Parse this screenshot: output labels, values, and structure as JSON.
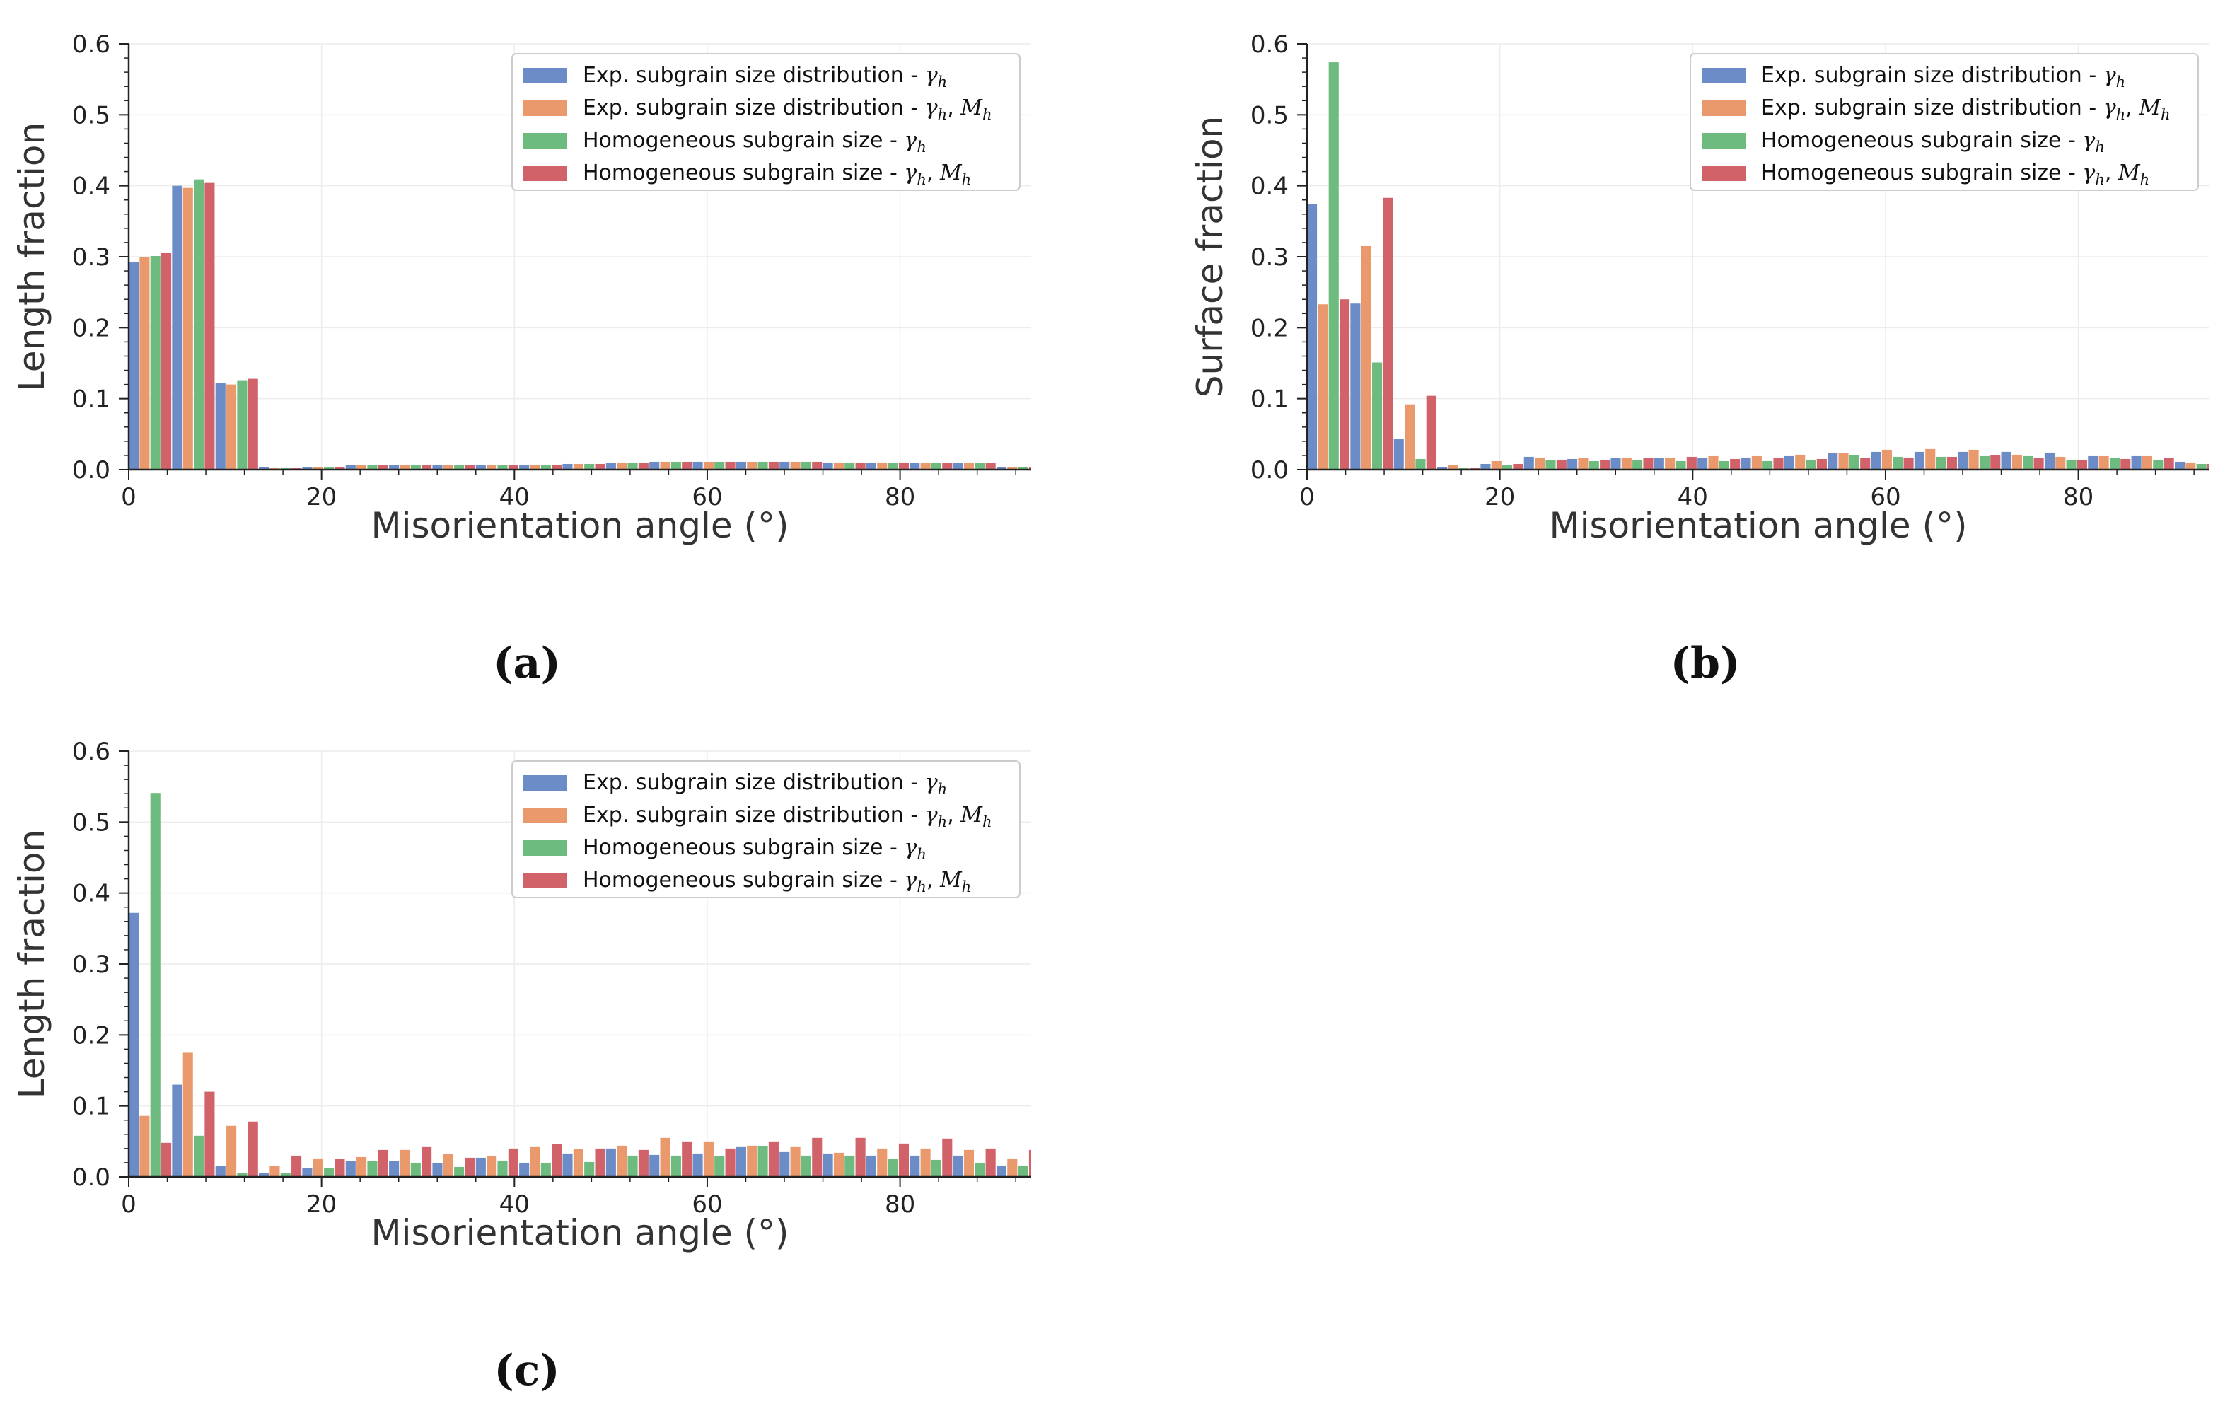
{
  "figure": {
    "captions": [
      "(a)",
      "(b)",
      "(c)"
    ]
  },
  "legend_entries": [
    {
      "text": "Exp. subgrain size distribution - ",
      "symbols": [
        {
          "base": "γ",
          "sub": "h"
        }
      ]
    },
    {
      "text": "Exp. subgrain size distribution - ",
      "symbols": [
        {
          "base": "γ",
          "sub": "h"
        },
        {
          "base": "M",
          "sub": "h"
        }
      ]
    },
    {
      "text": "Homogeneous subgrain size - ",
      "symbols": [
        {
          "base": "γ",
          "sub": "h"
        }
      ]
    },
    {
      "text": "Homogeneous subgrain size - ",
      "symbols": [
        {
          "base": "γ",
          "sub": "h"
        },
        {
          "base": "M",
          "sub": "h"
        }
      ]
    }
  ],
  "colors": {
    "series": [
      "#6b8cc7",
      "#e9996b",
      "#6dbb7e",
      "#d1626a"
    ],
    "grid": "#ececec",
    "axis": "#222222"
  },
  "chart_data": [
    {
      "id": "a",
      "type": "bar",
      "caption": "(a)",
      "xlabel": "Misorientation angle (°)",
      "ylabel": "Length fraction",
      "xlim": [
        0,
        93.6
      ],
      "ylim": [
        0,
        0.6
      ],
      "xticks": [
        0,
        20,
        40,
        60,
        80
      ],
      "yticks": [
        0.0,
        0.1,
        0.2,
        0.3,
        0.4,
        0.5,
        0.6
      ],
      "grid": true,
      "legend": "top-right",
      "bin_width": 4.5,
      "bin_starts": [
        0,
        4.5,
        9,
        13.5,
        18,
        22.5,
        27,
        31.5,
        36,
        40.5,
        45,
        49.5,
        54,
        58.5,
        63,
        67.5,
        72,
        76.5,
        81,
        85.5,
        90
      ],
      "series": [
        {
          "values": [
            0.292,
            0.4,
            0.122,
            0.004,
            0.004,
            0.006,
            0.007,
            0.007,
            0.007,
            0.007,
            0.008,
            0.01,
            0.011,
            0.011,
            0.011,
            0.011,
            0.01,
            0.01,
            0.009,
            0.009,
            0.004
          ]
        },
        {
          "values": [
            0.299,
            0.397,
            0.12,
            0.003,
            0.004,
            0.006,
            0.007,
            0.007,
            0.007,
            0.007,
            0.008,
            0.01,
            0.011,
            0.011,
            0.011,
            0.011,
            0.01,
            0.01,
            0.009,
            0.009,
            0.004
          ]
        },
        {
          "values": [
            0.301,
            0.409,
            0.126,
            0.003,
            0.004,
            0.006,
            0.007,
            0.007,
            0.007,
            0.007,
            0.008,
            0.01,
            0.011,
            0.011,
            0.011,
            0.011,
            0.01,
            0.01,
            0.009,
            0.009,
            0.004
          ]
        },
        {
          "values": [
            0.305,
            0.404,
            0.128,
            0.003,
            0.004,
            0.006,
            0.007,
            0.007,
            0.007,
            0.007,
            0.008,
            0.01,
            0.011,
            0.011,
            0.011,
            0.011,
            0.01,
            0.01,
            0.009,
            0.009,
            0.004
          ]
        }
      ]
    },
    {
      "id": "b",
      "type": "bar",
      "caption": "(b)",
      "xlabel": "Misorientation angle (°)",
      "ylabel": "Surface fraction",
      "xlim": [
        0,
        93.6
      ],
      "ylim": [
        0,
        0.6
      ],
      "xticks": [
        0,
        20,
        40,
        60,
        80
      ],
      "yticks": [
        0.0,
        0.1,
        0.2,
        0.3,
        0.4,
        0.5,
        0.6
      ],
      "grid": true,
      "legend": "top-right",
      "bin_width": 4.5,
      "bin_starts": [
        0,
        4.5,
        9,
        13.5,
        18,
        22.5,
        27,
        31.5,
        36,
        40.5,
        45,
        49.5,
        54,
        58.5,
        63,
        67.5,
        72,
        76.5,
        81,
        85.5,
        90
      ],
      "series": [
        {
          "values": [
            0.374,
            0.234,
            0.043,
            0.004,
            0.008,
            0.018,
            0.015,
            0.016,
            0.016,
            0.016,
            0.017,
            0.019,
            0.023,
            0.025,
            0.025,
            0.025,
            0.025,
            0.024,
            0.019,
            0.019,
            0.011
          ]
        },
        {
          "values": [
            0.233,
            0.315,
            0.092,
            0.006,
            0.012,
            0.017,
            0.016,
            0.017,
            0.017,
            0.019,
            0.019,
            0.021,
            0.023,
            0.028,
            0.029,
            0.028,
            0.021,
            0.018,
            0.019,
            0.019,
            0.01
          ]
        },
        {
          "values": [
            0.574,
            0.151,
            0.015,
            0.002,
            0.006,
            0.013,
            0.012,
            0.013,
            0.012,
            0.012,
            0.012,
            0.014,
            0.02,
            0.018,
            0.018,
            0.019,
            0.019,
            0.014,
            0.016,
            0.014,
            0.008
          ]
        },
        {
          "values": [
            0.24,
            0.383,
            0.104,
            0.003,
            0.008,
            0.014,
            0.014,
            0.016,
            0.018,
            0.015,
            0.016,
            0.015,
            0.016,
            0.017,
            0.018,
            0.02,
            0.016,
            0.014,
            0.015,
            0.016,
            0.008
          ]
        }
      ]
    },
    {
      "id": "c",
      "type": "bar",
      "caption": "(c)",
      "xlabel": "Misorientation angle (°)",
      "ylabel": "Length fraction",
      "xlim": [
        0,
        93.6
      ],
      "ylim": [
        0,
        0.6
      ],
      "xticks": [
        0,
        20,
        40,
        60,
        80
      ],
      "yticks": [
        0.0,
        0.1,
        0.2,
        0.3,
        0.4,
        0.5,
        0.6
      ],
      "grid": true,
      "legend": "top-right",
      "bin_width": 4.5,
      "bin_starts": [
        0,
        4.5,
        9,
        13.5,
        18,
        22.5,
        27,
        31.5,
        36,
        40.5,
        45,
        49.5,
        54,
        58.5,
        63,
        67.5,
        72,
        76.5,
        81,
        85.5,
        90
      ],
      "series": [
        {
          "values": [
            0.372,
            0.13,
            0.015,
            0.006,
            0.012,
            0.022,
            0.022,
            0.02,
            0.027,
            0.02,
            0.033,
            0.04,
            0.031,
            0.033,
            0.042,
            0.035,
            0.033,
            0.03,
            0.03,
            0.03,
            0.016
          ]
        },
        {
          "values": [
            0.086,
            0.175,
            0.072,
            0.016,
            0.026,
            0.028,
            0.038,
            0.032,
            0.029,
            0.042,
            0.039,
            0.044,
            0.055,
            0.05,
            0.044,
            0.042,
            0.034,
            0.04,
            0.04,
            0.038,
            0.026
          ]
        },
        {
          "values": [
            0.541,
            0.058,
            0.005,
            0.005,
            0.012,
            0.022,
            0.02,
            0.014,
            0.023,
            0.02,
            0.021,
            0.03,
            0.03,
            0.029,
            0.043,
            0.03,
            0.03,
            0.025,
            0.024,
            0.02,
            0.016
          ]
        },
        {
          "values": [
            0.048,
            0.12,
            0.078,
            0.03,
            0.025,
            0.038,
            0.042,
            0.027,
            0.04,
            0.046,
            0.04,
            0.038,
            0.05,
            0.04,
            0.05,
            0.055,
            0.055,
            0.047,
            0.054,
            0.04,
            0.038
          ]
        }
      ]
    }
  ]
}
